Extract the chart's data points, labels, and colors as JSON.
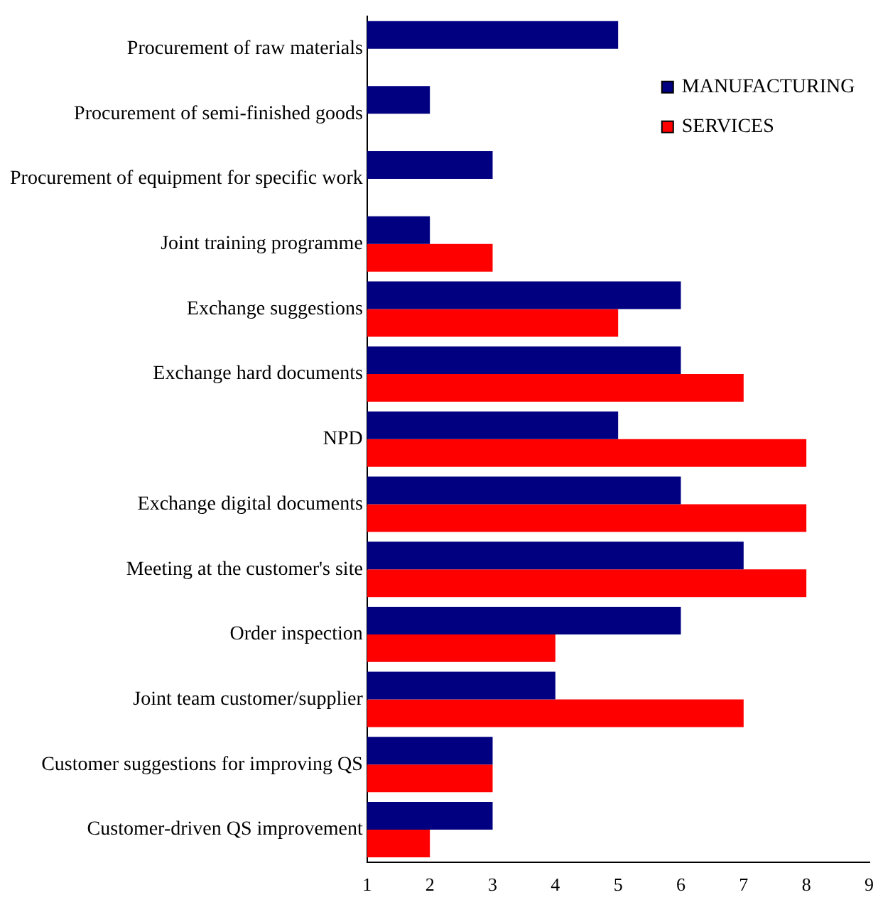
{
  "chart_data": {
    "type": "bar",
    "orientation": "horizontal",
    "categories": [
      "Procurement of raw materials",
      "Procurement of semi-finished goods",
      "Procurement of equipment for specific work",
      "Joint training programme",
      "Exchange suggestions",
      "Exchange hard documents",
      "NPD",
      "Exchange digital documents",
      "Meeting at the customer's site",
      "Order inspection",
      "Joint team customer/supplier",
      "Customer suggestions for improving QS",
      "Customer-driven QS improvement"
    ],
    "series": [
      {
        "name": "MANUFACTURING",
        "color": "#000080",
        "values": [
          5,
          2,
          3,
          2,
          6,
          6,
          5,
          6,
          7,
          6,
          4,
          3,
          3
        ]
      },
      {
        "name": "SERVICES",
        "color": "#ff0000",
        "values": [
          null,
          null,
          null,
          3,
          5,
          7,
          8,
          8,
          8,
          4,
          7,
          3,
          2
        ]
      }
    ],
    "xlim": [
      1,
      9
    ],
    "xticks": [
      1,
      2,
      3,
      4,
      5,
      6,
      7,
      8,
      9
    ],
    "grid": false,
    "legend": "top right"
  }
}
